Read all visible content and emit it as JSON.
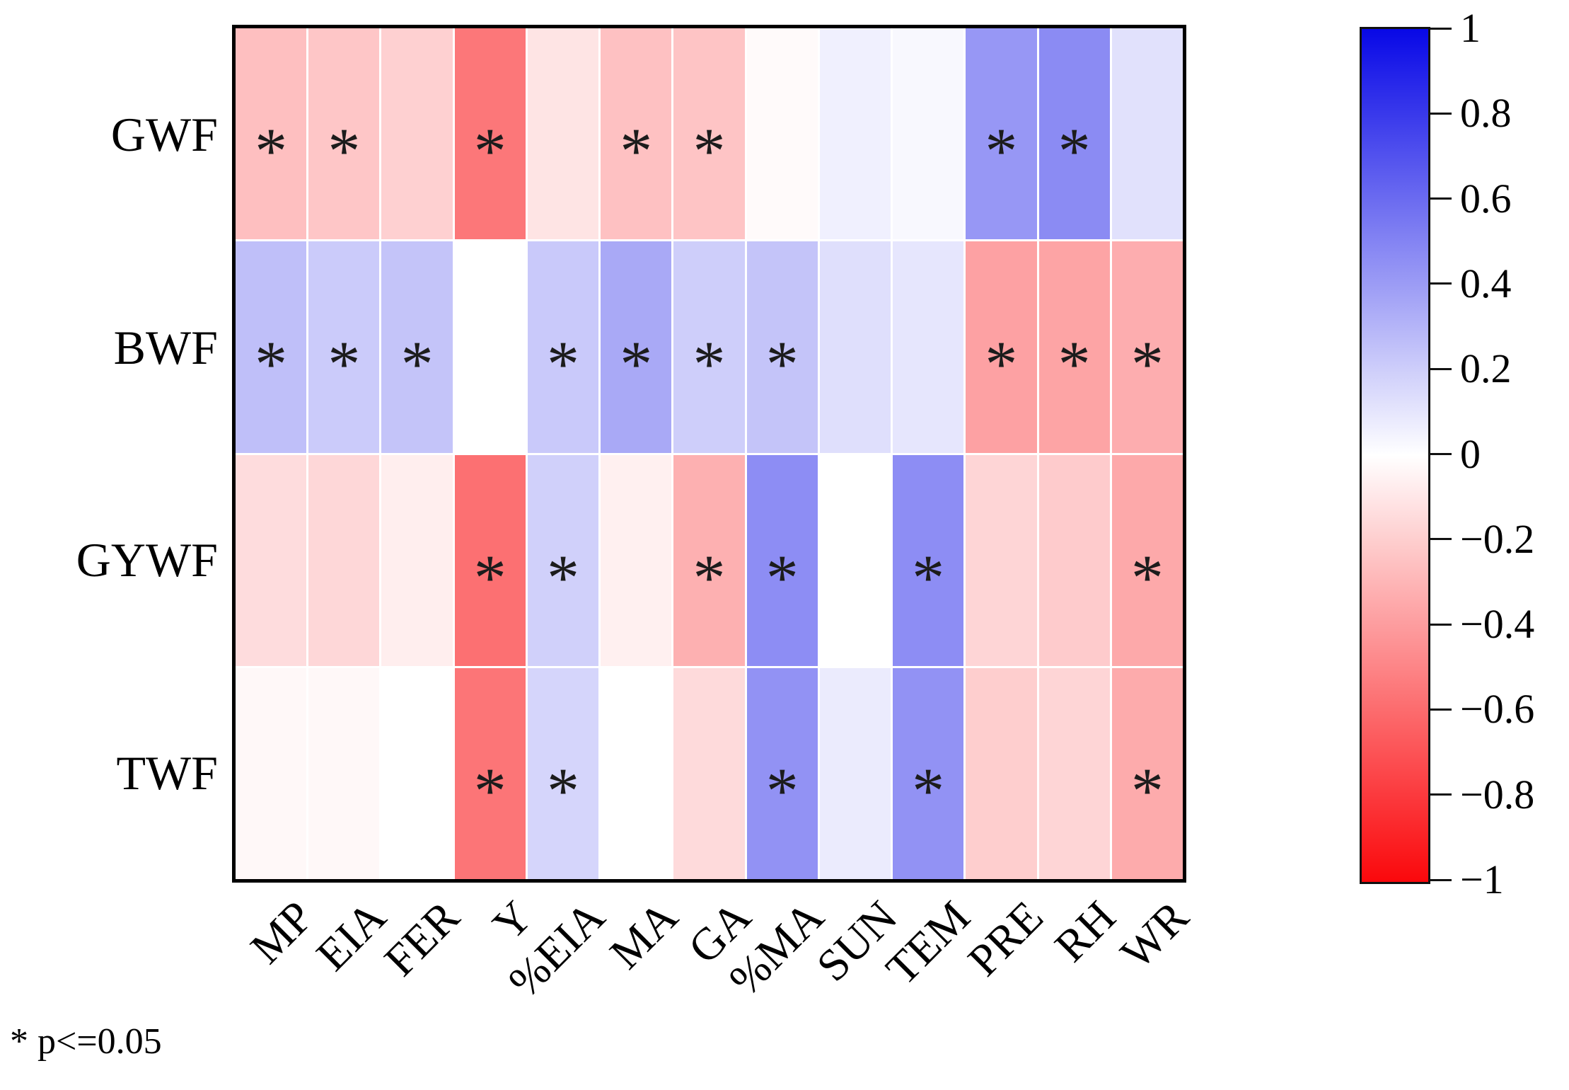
{
  "figure": {
    "footnote": "* p<=0.05"
  },
  "chart_data": {
    "type": "heatmap",
    "title": "",
    "rows": [
      "GWF",
      "BWF",
      "GYWF",
      "TWF"
    ],
    "columns": [
      "MP",
      "EIA",
      "FER",
      "Y",
      "%EIA",
      "MA",
      "GA",
      "%MA",
      "SUN",
      "TEM",
      "PRE",
      "RH",
      "WR"
    ],
    "values": [
      [
        -0.26,
        -0.23,
        -0.19,
        -0.55,
        -0.11,
        -0.25,
        -0.24,
        -0.02,
        0.06,
        0.03,
        0.42,
        0.47,
        0.12
      ],
      [
        0.26,
        0.21,
        0.24,
        0.0,
        0.22,
        0.35,
        0.2,
        0.24,
        0.13,
        0.1,
        -0.38,
        -0.37,
        -0.33
      ],
      [
        -0.14,
        -0.16,
        -0.07,
        -0.58,
        0.19,
        -0.06,
        -0.32,
        0.46,
        0.0,
        0.46,
        -0.17,
        -0.21,
        -0.35
      ],
      [
        -0.03,
        -0.03,
        0.0,
        -0.56,
        0.17,
        0.0,
        -0.15,
        0.44,
        0.08,
        0.44,
        -0.2,
        -0.17,
        -0.34
      ]
    ],
    "significant": [
      [
        1,
        1,
        0,
        1,
        0,
        1,
        1,
        0,
        0,
        0,
        1,
        1,
        0
      ],
      [
        1,
        1,
        1,
        0,
        1,
        1,
        1,
        1,
        0,
        0,
        1,
        1,
        1
      ],
      [
        0,
        0,
        0,
        1,
        1,
        0,
        1,
        1,
        0,
        1,
        0,
        0,
        1
      ],
      [
        0,
        0,
        0,
        1,
        1,
        0,
        0,
        1,
        0,
        1,
        0,
        0,
        1
      ]
    ],
    "sig_marker": "*",
    "colorbar": {
      "min": -1,
      "max": 1,
      "tick_values": [
        1,
        0.8,
        0.6,
        0.4,
        0.2,
        0,
        -0.2,
        -0.4,
        -0.6,
        -0.8,
        -1
      ],
      "ticks": [
        "1",
        "0.8",
        "0.6",
        "0.4",
        "0.2",
        "0",
        "−0.2",
        "−0.4",
        "−0.6",
        "−0.8",
        "−1"
      ],
      "color_positive_max": "#0808e6",
      "color_zero": "#ffffff",
      "color_negative_max": "#fa080c"
    },
    "legend_note": "* p<=0.05"
  }
}
